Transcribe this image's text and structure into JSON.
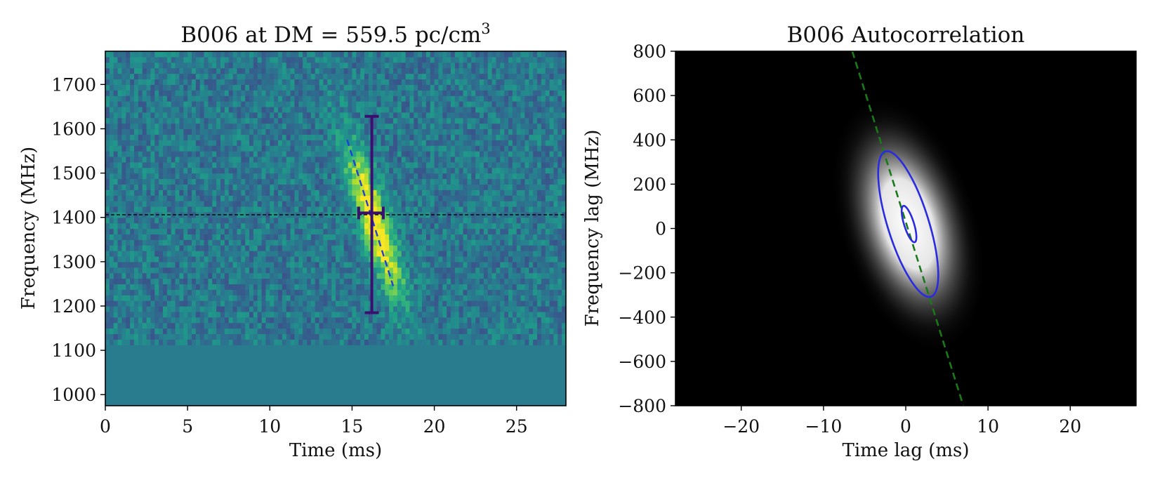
{
  "chart_data": [
    {
      "type": "heatmap",
      "title": "B006 at DM = 559.5 pc/cm",
      "title_superscript": "3",
      "xlabel": "Time (ms)",
      "ylabel": "Frequency (MHz)",
      "xlim": [
        0,
        28
      ],
      "ylim": [
        975,
        1775
      ],
      "xticks": [
        0,
        5,
        10,
        15,
        20,
        25
      ],
      "yticks": [
        1000,
        1100,
        1200,
        1300,
        1400,
        1500,
        1600,
        1700
      ],
      "colormap": "viridis",
      "flagged_band_below_mhz": 1115,
      "burst": {
        "center_time_ms": 16.2,
        "center_freq_mhz": 1410,
        "drift_line": {
          "t_start": 14.7,
          "f_start": 1575,
          "t_end": 17.5,
          "f_end": 1245,
          "color": "#1f3fd8",
          "style": "dashed"
        },
        "vertical_errorbar_mhz": [
          1185,
          1628
        ],
        "horizontal_errorbar_ms": [
          15.4,
          16.9
        ],
        "errorbar_color": "#3b0f70"
      },
      "reference_line": {
        "freq_mhz": 1406,
        "color": "#000000",
        "style": "dashed"
      }
    },
    {
      "type": "heatmap",
      "title": "B006 Autocorrelation",
      "xlabel": "Time lag (ms)",
      "ylabel": "Frequency lag (MHz)",
      "xlim": [
        -28,
        28
      ],
      "ylim": [
        -800,
        800
      ],
      "xticks": [
        -20,
        -10,
        0,
        10,
        20
      ],
      "xtick_labels": [
        "−20",
        "−10",
        "0",
        "10",
        "20"
      ],
      "yticks": [
        800,
        600,
        400,
        200,
        0,
        -200,
        -400,
        -600,
        -800
      ],
      "ytick_labels": [
        "800",
        "600",
        "400",
        "200",
        "0",
        "−200",
        "−400",
        "−600",
        "−800"
      ],
      "colormap": "gray",
      "fit_line": {
        "x_top": -6.5,
        "y_top": 800,
        "x_bottom": 7.0,
        "y_bottom": -800,
        "color": "#1a7a1a",
        "style": "dashed"
      },
      "ellipses": [
        {
          "center": [
            0.3,
            20
          ],
          "semi_major_mhz": 328,
          "semi_minor_ms": 2.5,
          "color": "#2a2ae0"
        },
        {
          "center": [
            0.4,
            20
          ],
          "semi_major_mhz": 82,
          "semi_minor_ms": 0.6,
          "color": "#2a2ae0"
        }
      ]
    }
  ]
}
